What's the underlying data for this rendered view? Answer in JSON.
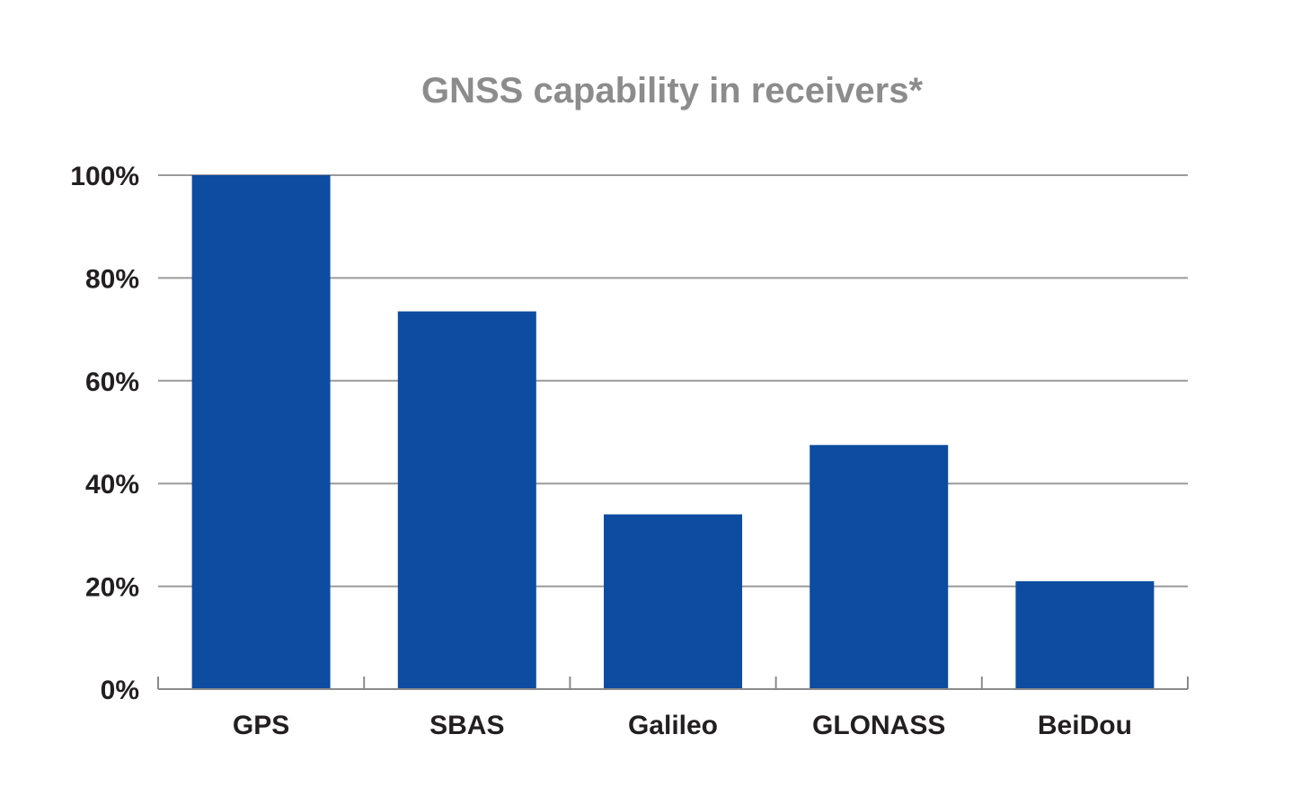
{
  "chart_data": {
    "type": "bar",
    "title": "GNSS capability in receivers*",
    "xlabel": "",
    "ylabel": "",
    "categories": [
      "GPS",
      "SBAS",
      "Galileo",
      "GLONASS",
      "BeiDou"
    ],
    "values": [
      100,
      73.5,
      34,
      47.5,
      21
    ],
    "ylim": [
      0,
      100
    ],
    "yticks": [
      0,
      20,
      40,
      60,
      80,
      100
    ],
    "ytick_labels": [
      "0%",
      "20%",
      "40%",
      "60%",
      "80%",
      "100%"
    ],
    "grid": true,
    "legend": "none",
    "bar_color": "#0d4ca1"
  }
}
